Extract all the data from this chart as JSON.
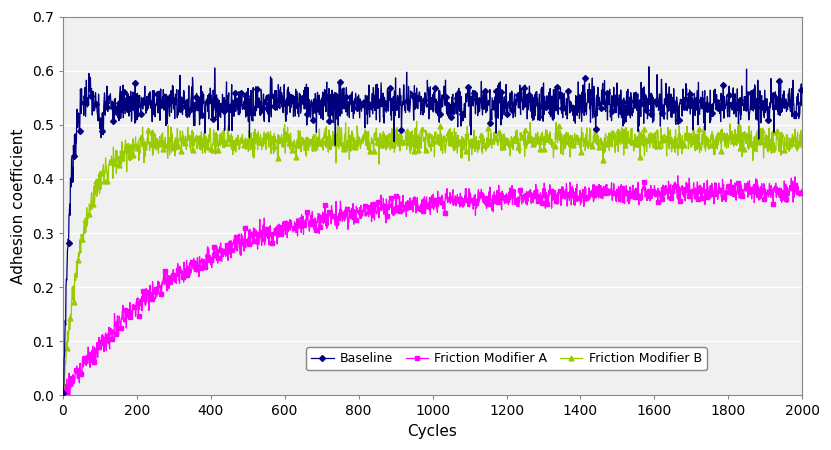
{
  "title": "",
  "xlabel": "Cycles",
  "ylabel": "Adhesion coefficient",
  "xlim": [
    0,
    2000
  ],
  "ylim": [
    0,
    0.7
  ],
  "yticks": [
    0,
    0.1,
    0.2,
    0.3,
    0.4,
    0.5,
    0.6,
    0.7
  ],
  "xticks": [
    0,
    200,
    400,
    600,
    800,
    1000,
    1200,
    1400,
    1600,
    1800,
    2000
  ],
  "baseline_color": "#00007F",
  "fma_color": "#FF00FF",
  "fmb_color": "#99CC00",
  "legend_labels": [
    "Baseline",
    "Friction Modifier A",
    "Friction Modifier B"
  ],
  "background_color": "#ffffff",
  "grid_color": "#bbbbbb",
  "figsize": [
    8.31,
    4.5
  ],
  "dpi": 100
}
